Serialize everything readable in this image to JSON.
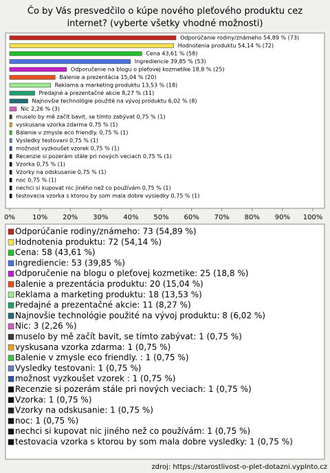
{
  "chart_data": {
    "type": "bar",
    "orientation": "horizontal",
    "title": "Čo by Vás presvedčilo o kúpe nového pleťového produktu cez internet? (vyberte všetky vhodné možnosti)",
    "values": [
      54.89,
      54.14,
      43.61,
      39.85,
      18.8,
      15.04,
      13.53,
      8.27,
      6.02,
      2.26,
      0.75,
      0.75,
      0.75,
      0.75,
      0.75,
      0.75,
      0.75,
      0.75,
      0.75,
      0.75,
      0.75
    ],
    "value_labels": [
      "Odporúčanie rodiny/známeho 54,89 % (73)",
      "Hodnotenia produktu 54,14 % (72)",
      "Cena 43,61 % (58)",
      "Ingrediencie 39,85 % (53)",
      "Odporučenie na blogu o pleťovej kozmetike 18,8 % (25)",
      "Balenie a prezentácia 15,04 % (20)",
      "Reklama a marketing produktu 13,53 % (18)",
      "Predajné a prezentačné akcie 8,27 % (11)",
      "Najnovšie technológie použité na vývoj produktu 6,02 % (8)",
      "Nic 2,26 % (3)",
      "muselo by mě začít bavit, se tímto zabývat 0,75 % (1)",
      "vyskusana vzorka zdarma 0,75 % (1)",
      "Balenie v zmysle eco friendly.  0,75 % (1)",
      "Vysledky testovani 0,75 % (1)",
      "možnost vyzkoušet vzorek  0,75 % (1)",
      "Recenzie si pozerám stále pri nových veciach 0,75 % (1)",
      "Vzorka 0,75 % (1)",
      "Vzorky na odskusanie 0,75 % (1)",
      "noc 0,75 % (1)",
      "nechci si kupovat nic jiného než co používám 0,75 % (1)",
      "testovacia vzorka s ktorou by som mala dobre vysledky 0,75 % (1)"
    ],
    "legend": [
      "Odporúčanie rodiny/známeho: 73 (54,89 %)",
      "Hodnotenia produktu: 72 (54,14 %)",
      "Cena: 58 (43,61 %)",
      "Ingrediencie: 53 (39,85 %)",
      "Odporučenie na blogu o pleťovej kozmetike: 25 (18,8 %)",
      "Balenie a prezentácia produktu: 20 (15,04 %)",
      "Reklama a marketing produktu: 18 (13,53 %)",
      "Predajné a prezentačné akcie: 11 (8,27 %)",
      "Najnovšie technológie použité na vývoj produktu: 8 (6,02 %)",
      "Nic: 3 (2,26 %)",
      "muselo by mě začít bavit, se tímto zabývat: 1 (0,75 %)",
      "vyskusana vzorka zdarma: 1 (0,75 %)",
      "Balenie v zmysle eco friendly. : 1 (0,75 %)",
      "Vysledky testovani: 1 (0,75 %)",
      "možnost vyzkoušet vzorek : 1 (0,75 %)",
      "Recenzie si pozerám stále pri nových veciach: 1 (0,75 %)",
      "Vzorka: 1 (0,75 %)",
      "Vzorky na odskusanie: 1 (0,75 %)",
      "noc: 1 (0,75 %)",
      "nechci si kupovat nic jiného než co používám: 1 (0,75 %)",
      "testovacia vzorka s ktorou by som mala dobre vysledky: 1 (0,75 %)"
    ],
    "colors": [
      "#c0281e",
      "#f5e050",
      "#22c02a",
      "#4a70e0",
      "#c020c8",
      "#e85020",
      "#a0e890",
      "#20a070",
      "#206e78",
      "#d060c0",
      "#3a3a3a",
      "#e8a020",
      "#40c040",
      "#6080c0",
      "#3050a0",
      "#111111",
      "#111111",
      "#222222",
      "#111111",
      "#111111",
      "#111111"
    ],
    "xlim": [
      0,
      100
    ],
    "xticks": [
      {
        "value": 0,
        "label": "0%"
      },
      {
        "value": 10,
        "label": "10%"
      },
      {
        "value": 20,
        "label": "20%"
      },
      {
        "value": 30,
        "label": "30%"
      },
      {
        "value": 40,
        "label": "40%"
      },
      {
        "value": 50,
        "label": "50%"
      },
      {
        "value": 60,
        "label": "60%"
      },
      {
        "value": 70,
        "label": "70%"
      },
      {
        "value": 80,
        "label": "80%"
      },
      {
        "value": 90,
        "label": "90%"
      },
      {
        "value": 100,
        "label": "100%"
      }
    ],
    "source": "zdroj: https://starostlivost-o-plet-dotazni.vyplnto.cz"
  }
}
